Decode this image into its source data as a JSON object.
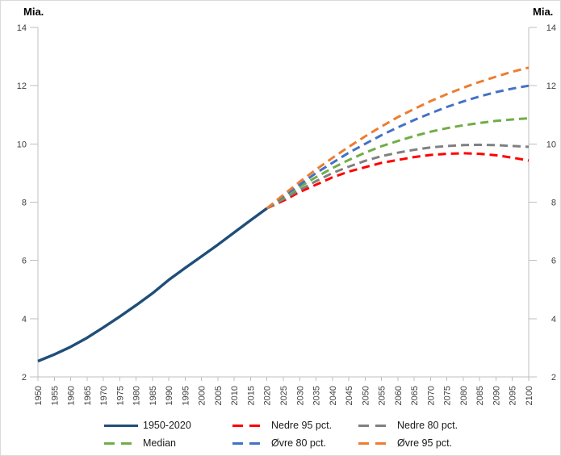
{
  "chart_data": {
    "type": "line",
    "title": "",
    "y_axis_title_left": "Mia.",
    "y_axis_title_right": "Mia.",
    "ylim": [
      2,
      14
    ],
    "ytick_step": 2,
    "x_min": 1950,
    "x_max": 2100,
    "xtick_step": 5,
    "grid": false,
    "legend_position": "bottom",
    "axis_color": "#BFBFBF",
    "tick_label_color": "#404040",
    "series": [
      {
        "id": "historical",
        "name": "1950-2020",
        "color": "#1F4E79",
        "line_style": "solid",
        "x_start": 1950,
        "x_step": 5,
        "values": [
          2.54,
          2.77,
          3.03,
          3.34,
          3.7,
          4.07,
          4.46,
          4.87,
          5.33,
          5.74,
          6.14,
          6.54,
          6.96,
          7.38,
          7.79
        ]
      },
      {
        "id": "nedre-95",
        "name": "Nedre 95 pct.",
        "color": "#FF0000",
        "line_style": "dashed",
        "x_start": 2020,
        "x_step": 5,
        "values": [
          7.79,
          8.05,
          8.35,
          8.6,
          8.85,
          9.05,
          9.2,
          9.35,
          9.45,
          9.55,
          9.62,
          9.66,
          9.68,
          9.66,
          9.61,
          9.53,
          9.43
        ]
      },
      {
        "id": "nedre-80",
        "name": "Nedre 80 pct.",
        "color": "#808080",
        "line_style": "dashed",
        "x_start": 2020,
        "x_step": 5,
        "values": [
          7.79,
          8.1,
          8.42,
          8.72,
          9.0,
          9.22,
          9.42,
          9.58,
          9.7,
          9.8,
          9.88,
          9.93,
          9.96,
          9.97,
          9.96,
          9.93,
          9.9
        ]
      },
      {
        "id": "median",
        "name": "Median",
        "color": "#70AD47",
        "line_style": "dashed",
        "x_start": 2020,
        "x_step": 5,
        "values": [
          7.79,
          8.15,
          8.52,
          8.86,
          9.17,
          9.45,
          9.7,
          9.92,
          10.1,
          10.27,
          10.42,
          10.54,
          10.64,
          10.72,
          10.79,
          10.84,
          10.88
        ]
      },
      {
        "id": "ovre-80",
        "name": "Øvre 80 pct.",
        "color": "#4472C4",
        "line_style": "dashed",
        "x_start": 2020,
        "x_step": 5,
        "values": [
          7.79,
          8.2,
          8.6,
          9.0,
          9.35,
          9.7,
          10.0,
          10.3,
          10.57,
          10.82,
          11.05,
          11.27,
          11.46,
          11.63,
          11.78,
          11.9,
          12.0
        ]
      },
      {
        "id": "ovre-95",
        "name": "Øvre 95 pct.",
        "color": "#ED7D31",
        "line_style": "dashed",
        "x_start": 2020,
        "x_step": 5,
        "values": [
          7.79,
          8.25,
          8.7,
          9.12,
          9.52,
          9.9,
          10.26,
          10.6,
          10.92,
          11.2,
          11.47,
          11.71,
          11.93,
          12.13,
          12.31,
          12.48,
          12.62
        ]
      }
    ]
  }
}
